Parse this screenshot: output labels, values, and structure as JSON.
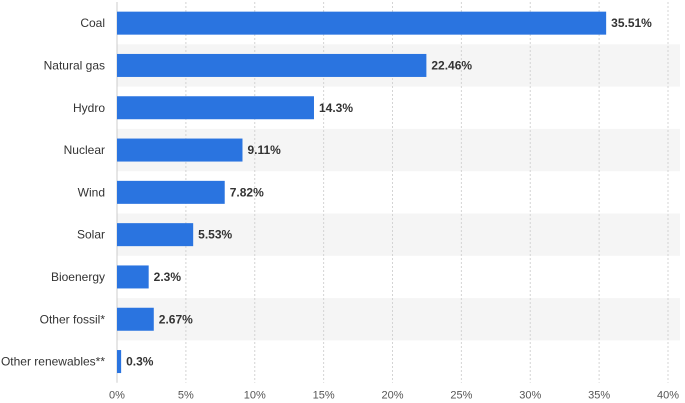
{
  "chart_data": {
    "type": "bar",
    "orientation": "horizontal",
    "categories": [
      "Coal",
      "Natural gas",
      "Hydro",
      "Nuclear",
      "Wind",
      "Solar",
      "Bioenergy",
      "Other fossil*",
      "Other renewables**"
    ],
    "values": [
      35.51,
      22.46,
      14.3,
      9.11,
      7.82,
      5.53,
      2.3,
      2.67,
      0.3
    ],
    "value_labels": [
      "35.51%",
      "22.46%",
      "14.3%",
      "9.11%",
      "7.82%",
      "5.53%",
      "2.3%",
      "2.67%",
      "0.3%"
    ],
    "xlim": [
      0,
      40
    ],
    "x_ticks": [
      0,
      5,
      10,
      15,
      20,
      25,
      30,
      35,
      40
    ],
    "x_tick_labels": [
      "0%",
      "5%",
      "10%",
      "15%",
      "20%",
      "25%",
      "30%",
      "35%",
      "40%"
    ],
    "grid": true,
    "bar_color": "#2a74e0",
    "band_color": "#f5f5f5"
  }
}
